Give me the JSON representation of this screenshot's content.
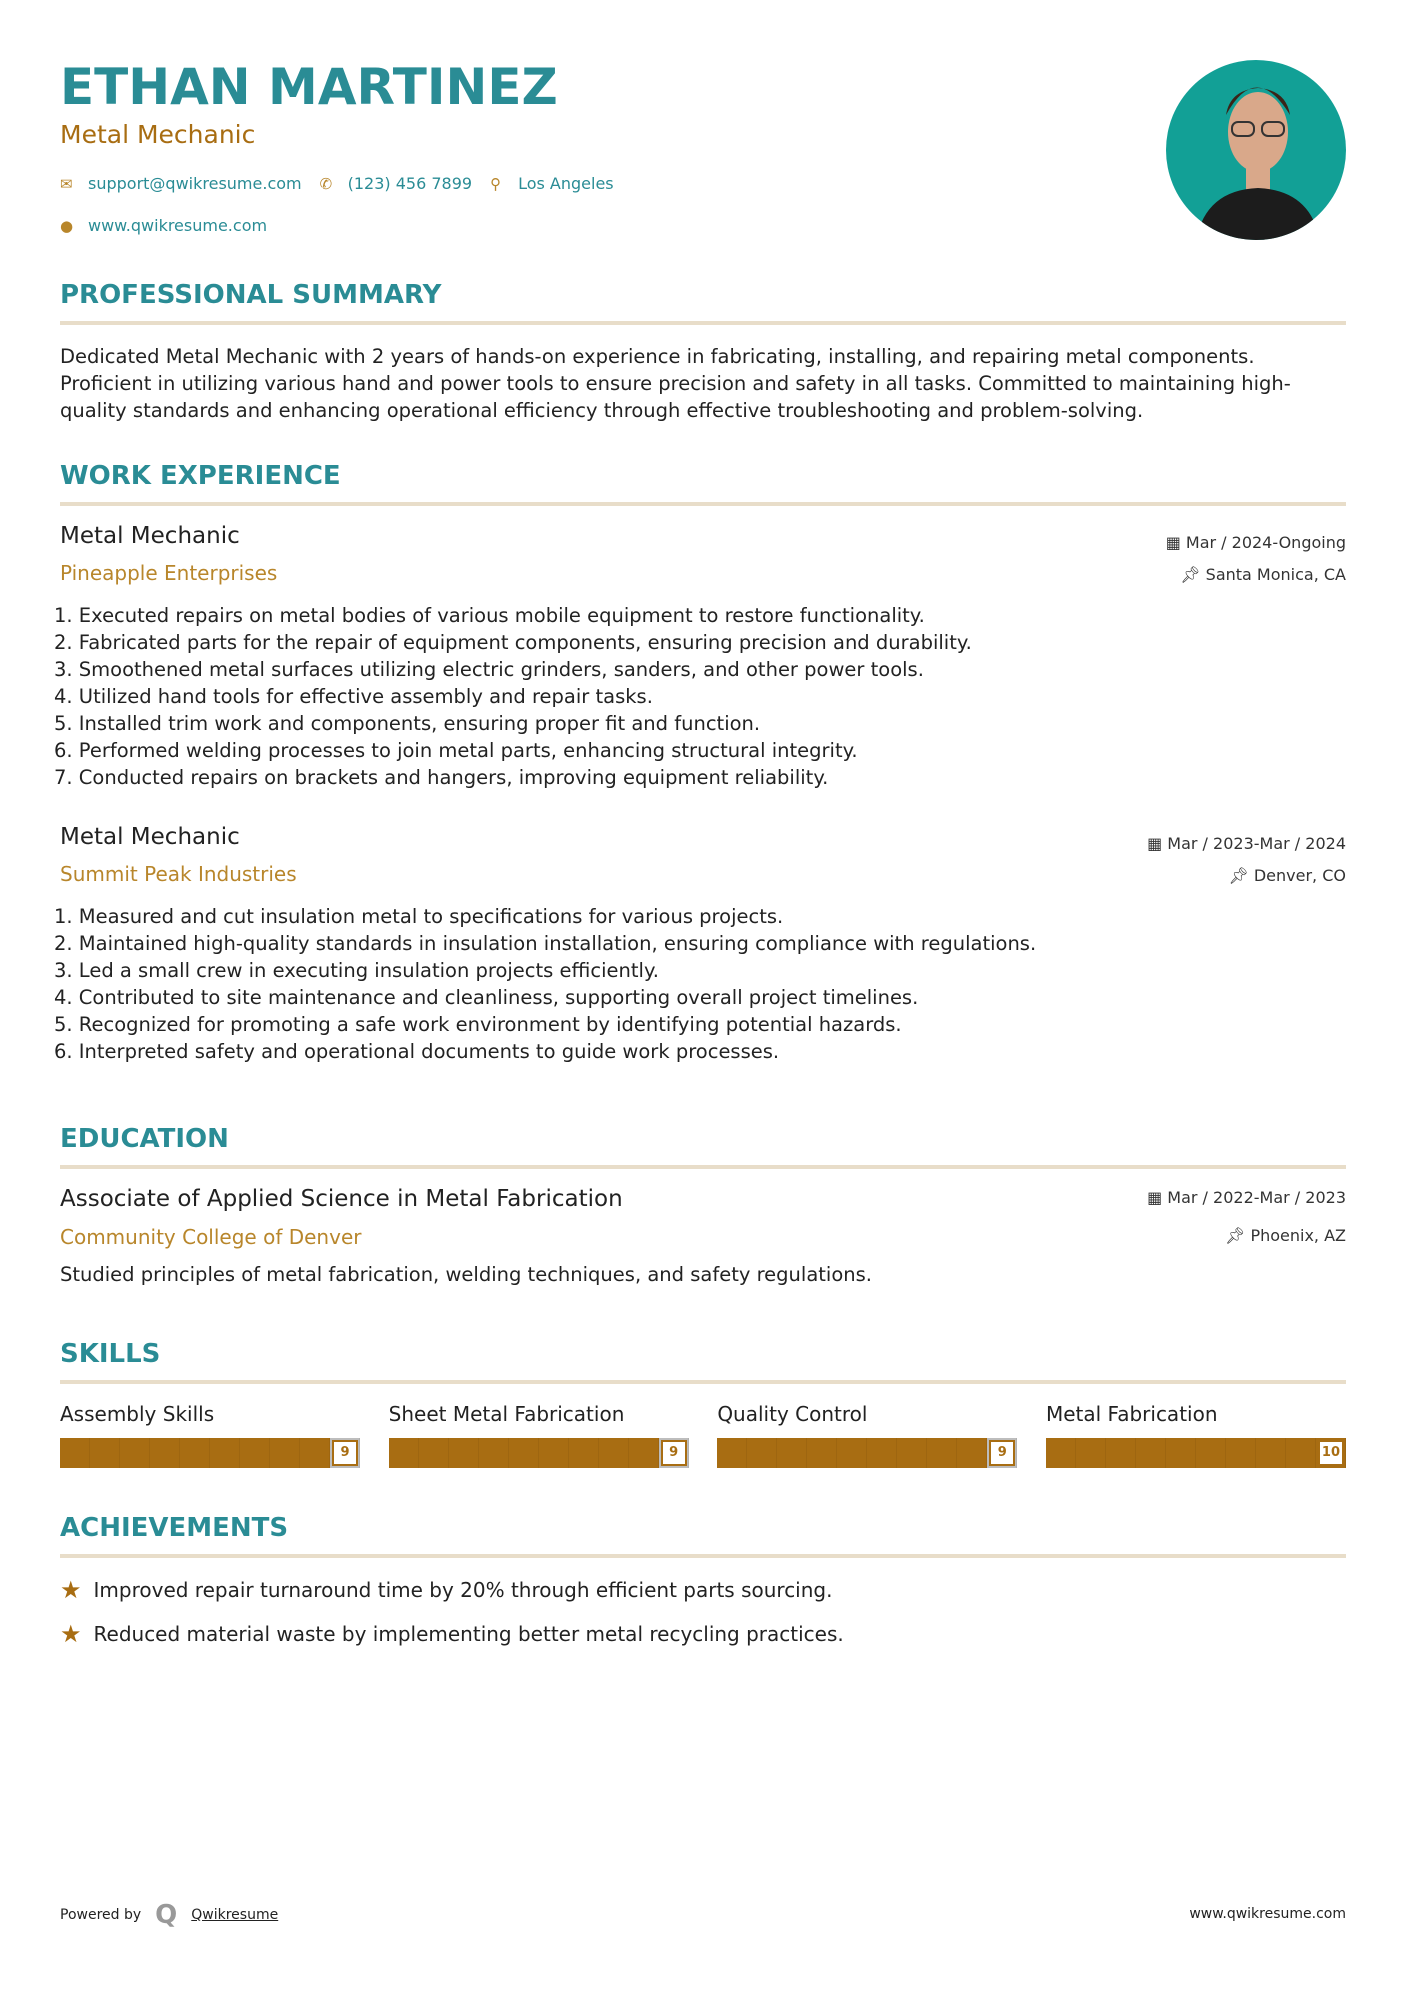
{
  "header": {
    "name": "ETHAN MARTINEZ",
    "title": "Metal Mechanic",
    "email": "support@qwikresume.com",
    "phone": "(123) 456 7899",
    "location": "Los Angeles",
    "website": "www.qwikresume.com"
  },
  "summary": {
    "heading": "PROFESSIONAL SUMMARY",
    "text": "Dedicated Metal Mechanic with 2 years of hands-on experience in fabricating, installing, and repairing metal components. Proficient in utilizing various hand and power tools to ensure precision and safety in all tasks. Committed to maintaining high-quality standards and enhancing operational efficiency through effective troubleshooting and problem-solving."
  },
  "experience": {
    "heading": "WORK EXPERIENCE",
    "jobs": [
      {
        "title": "Metal Mechanic",
        "company": "Pineapple Enterprises",
        "dates": "Mar / 2024-Ongoing",
        "location": "Santa Monica, CA",
        "bullets": [
          "1. Executed repairs on metal bodies of various mobile equipment to restore functionality.",
          "2. Fabricated parts for the repair of equipment components, ensuring precision and durability.",
          "3. Smoothened metal surfaces utilizing electric grinders, sanders, and other power tools.",
          "4. Utilized hand tools for effective assembly and repair tasks.",
          "5. Installed trim work and components, ensuring proper fit and function.",
          "6. Performed welding processes to join metal parts, enhancing structural integrity.",
          "7. Conducted repairs on brackets and hangers, improving equipment reliability."
        ]
      },
      {
        "title": "Metal Mechanic",
        "company": "Summit Peak Industries",
        "dates": "Mar / 2023-Mar / 2024",
        "location": "Denver, CO",
        "bullets": [
          "1. Measured and cut insulation metal to specifications for various projects.",
          "2. Maintained high-quality standards in insulation installation, ensuring compliance with regulations.",
          "3. Led a small crew in executing insulation projects efficiently.",
          "4. Contributed to site maintenance and cleanliness, supporting overall project timelines.",
          "5. Recognized for promoting a safe work environment by identifying potential hazards.",
          "6. Interpreted safety and operational documents to guide work processes."
        ]
      }
    ]
  },
  "education": {
    "heading": "EDUCATION",
    "degree": "Associate of Applied Science in Metal Fabrication",
    "school": "Community College of Denver",
    "dates": "Mar / 2022-Mar / 2023",
    "location": "Phoenix, AZ",
    "description": "Studied principles of metal fabrication, welding techniques, and safety regulations."
  },
  "skills": {
    "heading": "SKILLS",
    "items": [
      {
        "name": "Assembly Skills",
        "level": 9,
        "max": 10,
        "label": "9"
      },
      {
        "name": "Sheet Metal Fabrication",
        "level": 9,
        "max": 10,
        "label": "9"
      },
      {
        "name": "Quality Control",
        "level": 9,
        "max": 10,
        "label": "9"
      },
      {
        "name": "Metal Fabrication",
        "level": 10,
        "max": 10,
        "label": "10"
      }
    ]
  },
  "achievements": {
    "heading": "ACHIEVEMENTS",
    "items": [
      "Improved repair turnaround time by 20% through efficient parts sourcing.",
      "Reduced material waste by implementing better metal recycling practices."
    ]
  },
  "footer": {
    "powered_by": "Powered by",
    "brand": "Qwikresume",
    "website": "www.qwikresume.com"
  },
  "colors": {
    "accent": "#2a8c95",
    "secondary": "#a86d12",
    "rule": "#e8ddc9"
  }
}
